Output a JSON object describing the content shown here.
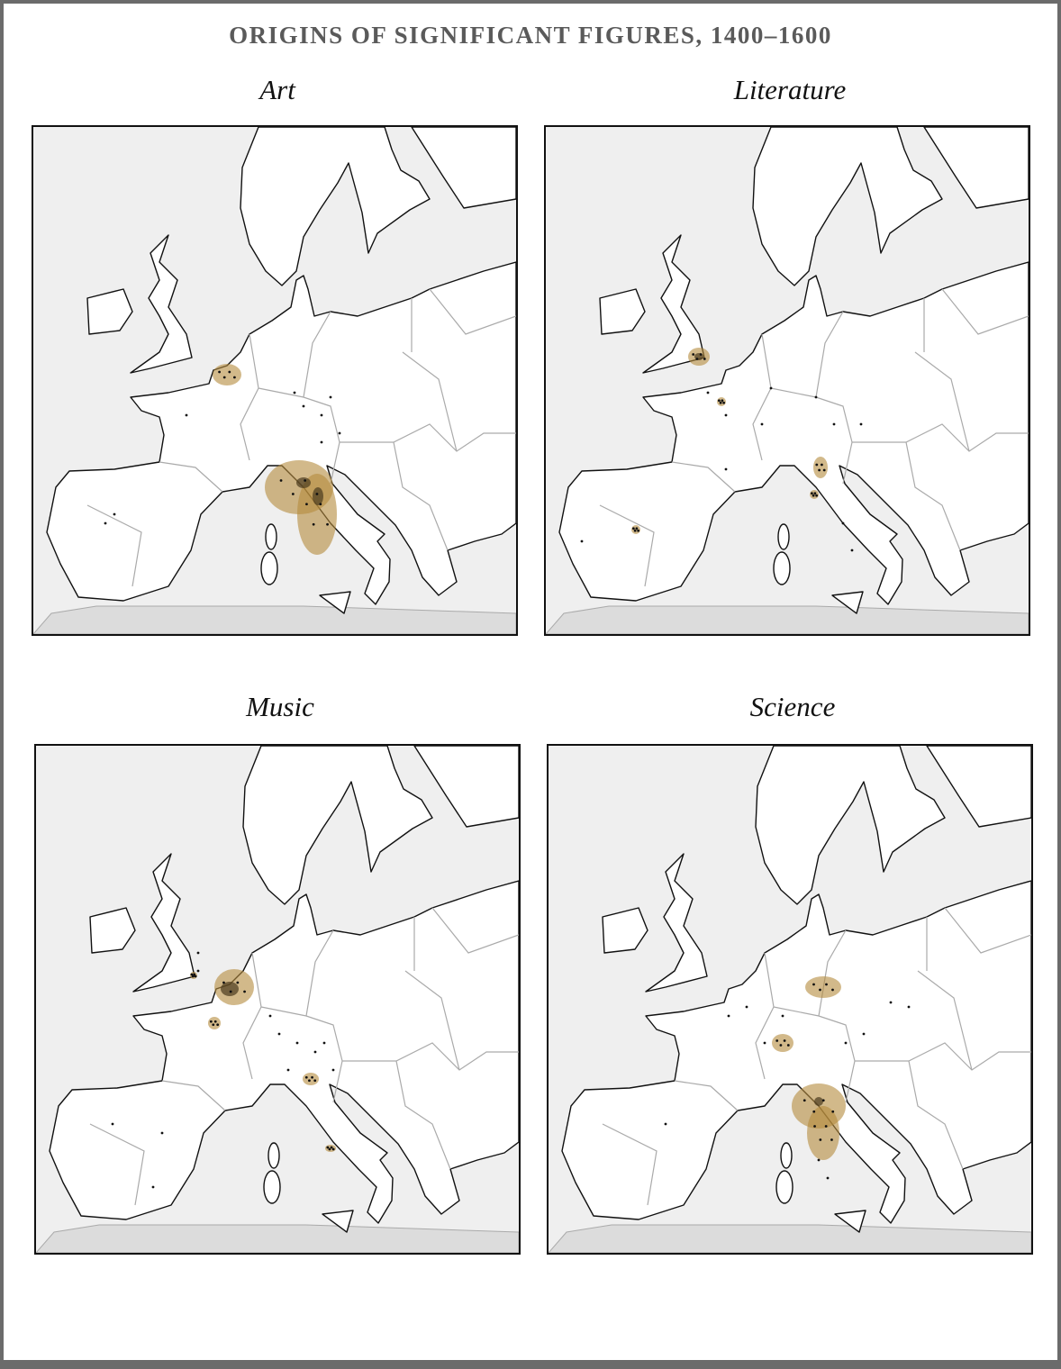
{
  "title": "ORIGINS OF SIGNIFICANT FIGURES, 1400–1600",
  "panels": [
    {
      "title": "Art"
    },
    {
      "title": "Literature"
    },
    {
      "title": "Music"
    },
    {
      "title": "Science"
    }
  ]
}
